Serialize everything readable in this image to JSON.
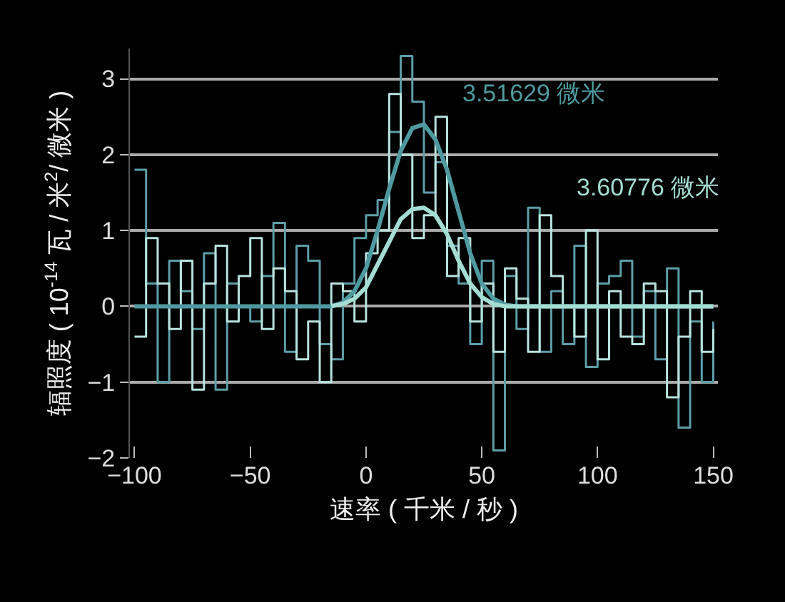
{
  "chart_data": {
    "type": "step",
    "xlabel": "速率 ( 千米 / 秒 )",
    "ylabel": "辐照度 ( 10$^{-14}$ 瓦 / 米$^{2}$/ 微米 )",
    "x": [
      -100,
      -95,
      -90,
      -85,
      -80,
      -75,
      -70,
      -65,
      -60,
      -55,
      -50,
      -45,
      -40,
      -35,
      -30,
      -25,
      -20,
      -15,
      -10,
      -5,
      0,
      5,
      10,
      15,
      20,
      25,
      30,
      35,
      40,
      45,
      50,
      55,
      60,
      65,
      70,
      75,
      80,
      85,
      90,
      95,
      100,
      105,
      110,
      115,
      120,
      125,
      130,
      135,
      140,
      145,
      150
    ],
    "series": [
      {
        "color": "#5d9ea8",
        "values": [
          1.8,
          0.3,
          -1,
          0.6,
          0.2,
          -0.3,
          0.7,
          -1.1,
          0.3,
          0,
          -0.2,
          0.4,
          1.1,
          -0.6,
          0.8,
          0.6,
          -0.5,
          -0.7,
          0.3,
          0.9,
          1.2,
          1.4,
          2.3,
          3.3,
          2.7,
          1.5,
          1.9,
          0.8,
          0.3,
          -0.5,
          0.6,
          -1.9,
          0.4,
          -0.3,
          1.3,
          -0.6,
          0.2,
          -0.5,
          0.8,
          -0.8,
          0.3,
          0.4,
          0.6,
          -0.4,
          0.2,
          -0.7,
          0.5,
          -1.6,
          -0.2,
          -1.0,
          -0.2
        ]
      },
      {
        "color": "#b8e3de",
        "values": [
          -0.4,
          0.9,
          0.3,
          -0.3,
          0.6,
          -1.1,
          0.3,
          0.8,
          -0.2,
          0.4,
          0.9,
          -0.3,
          0.5,
          0.2,
          -0.7,
          -0.2,
          -1.0,
          0.3,
          0.2,
          -0.2,
          0.7,
          1.0,
          2.8,
          2.0,
          0.9,
          1.2,
          2.5,
          0.4,
          0.9,
          -0.2,
          0.3,
          -0.6,
          0.5,
          0.1,
          -0.6,
          1.2,
          0.4,
          0.0,
          -0.4,
          1.0,
          -0.7,
          0.2,
          -0.4,
          -0.5,
          0.3,
          0.2,
          -1.2,
          -0.4,
          0.2,
          -0.6,
          -0.3
        ]
      },
      {
        "type": "line",
        "color": "#4f9aa0",
        "x": [
          -100,
          -15,
          -10,
          -5,
          0,
          5,
          10,
          15,
          20,
          25,
          30,
          35,
          40,
          45,
          50,
          55,
          60,
          65,
          150
        ],
        "values": [
          0,
          0,
          0.05,
          0.2,
          0.5,
          1.0,
          1.55,
          2.05,
          2.35,
          2.4,
          2.2,
          1.8,
          1.25,
          0.7,
          0.3,
          0.1,
          0.02,
          0,
          0
        ]
      },
      {
        "type": "line",
        "color": "#a3ddd3",
        "x": [
          -15,
          -10,
          -5,
          0,
          5,
          10,
          15,
          20,
          25,
          30,
          35,
          40,
          45,
          50,
          55,
          60,
          150
        ],
        "values": [
          0,
          0.03,
          0.1,
          0.25,
          0.55,
          0.85,
          1.15,
          1.28,
          1.3,
          1.2,
          0.95,
          0.6,
          0.3,
          0.12,
          0.03,
          0,
          0
        ]
      }
    ],
    "annotations": [
      "3.51629 微米",
      "3.60776 微米"
    ],
    "xlim": [
      -102,
      152
    ],
    "xticks": [
      {
        "value": -100,
        "label": "−100"
      },
      {
        "value": -50,
        "label": "−50"
      },
      0,
      50,
      100,
      150
    ],
    "ylim": [
      -2,
      3.4
    ],
    "yticks": [
      {
        "value": -2,
        "label": "−2"
      },
      {
        "value": -1,
        "label": "−1"
      },
      0,
      1,
      2,
      3
    ],
    "grid": "y"
  }
}
